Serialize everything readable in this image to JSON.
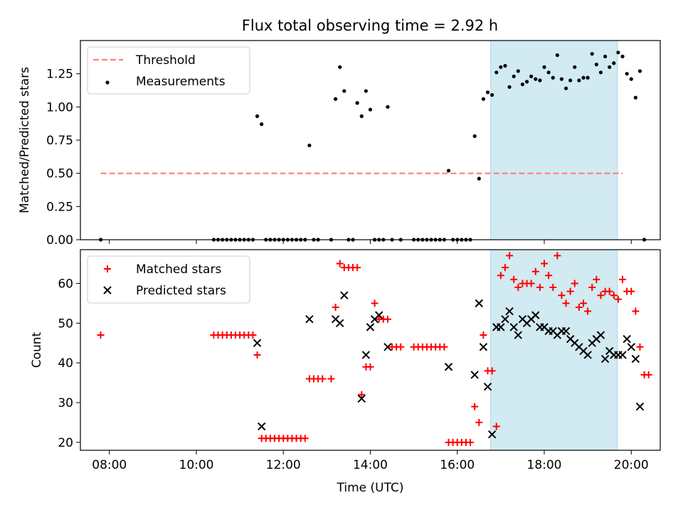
{
  "title": "Flux total observing time = 2.92 h",
  "chart_data": [
    {
      "type": "scatter",
      "ylabel": "Matched/Predicted stars",
      "xlabel": "",
      "xlim": [
        "07:20",
        "20:40"
      ],
      "ylim": [
        0,
        1.5
      ],
      "xticks": [
        "08:00",
        "10:00",
        "12:00",
        "14:00",
        "16:00",
        "18:00",
        "20:00"
      ],
      "yticks": [
        0.0,
        0.25,
        0.5,
        0.75,
        1.0,
        1.25
      ],
      "ytick_labels": [
        "0.00",
        "0.25",
        "0.50",
        "0.75",
        "1.00",
        "1.25"
      ],
      "grid": false,
      "legend_position": "upper-left",
      "shaded_interval": {
        "start": "16:46",
        "end": "19:41",
        "color": "#add8e6"
      },
      "threshold": {
        "name": "Threshold",
        "y": 0.5,
        "x_start": "07:48",
        "x_end": "19:48",
        "color": "#ff7f7f"
      },
      "series": [
        {
          "name": "Measurements",
          "color": "#000000",
          "marker": "dot",
          "points": [
            [
              "07:48",
              0
            ],
            [
              "10:24",
              0
            ],
            [
              "10:30",
              0
            ],
            [
              "10:36",
              0
            ],
            [
              "10:42",
              0
            ],
            [
              "10:48",
              0
            ],
            [
              "10:54",
              0
            ],
            [
              "11:00",
              0
            ],
            [
              "11:06",
              0
            ],
            [
              "11:12",
              0
            ],
            [
              "11:18",
              0
            ],
            [
              "11:24",
              0.93
            ],
            [
              "11:30",
              0.87
            ],
            [
              "11:36",
              0
            ],
            [
              "11:42",
              0
            ],
            [
              "11:48",
              0
            ],
            [
              "11:54",
              0
            ],
            [
              "12:00",
              0
            ],
            [
              "12:06",
              0
            ],
            [
              "12:12",
              0
            ],
            [
              "12:18",
              0
            ],
            [
              "12:24",
              0
            ],
            [
              "12:30",
              0
            ],
            [
              "12:36",
              0.71
            ],
            [
              "12:42",
              0
            ],
            [
              "12:48",
              0
            ],
            [
              "13:06",
              0
            ],
            [
              "13:12",
              1.06
            ],
            [
              "13:18",
              1.3
            ],
            [
              "13:24",
              1.12
            ],
            [
              "13:30",
              0
            ],
            [
              "13:36",
              0
            ],
            [
              "13:42",
              1.03
            ],
            [
              "13:48",
              0.93
            ],
            [
              "13:54",
              1.12
            ],
            [
              "14:00",
              0.98
            ],
            [
              "14:06",
              0
            ],
            [
              "14:12",
              0
            ],
            [
              "14:18",
              0
            ],
            [
              "14:24",
              1.0
            ],
            [
              "14:30",
              0
            ],
            [
              "14:42",
              0
            ],
            [
              "15:00",
              0
            ],
            [
              "15:06",
              0
            ],
            [
              "15:12",
              0
            ],
            [
              "15:18",
              0
            ],
            [
              "15:24",
              0
            ],
            [
              "15:30",
              0
            ],
            [
              "15:36",
              0
            ],
            [
              "15:42",
              0
            ],
            [
              "15:48",
              0.52
            ],
            [
              "15:54",
              0
            ],
            [
              "16:00",
              0
            ],
            [
              "16:06",
              0
            ],
            [
              "16:12",
              0
            ],
            [
              "16:18",
              0
            ],
            [
              "16:24",
              0.78
            ],
            [
              "16:30",
              0.46
            ],
            [
              "16:36",
              1.06
            ],
            [
              "16:42",
              1.11
            ],
            [
              "16:48",
              1.09
            ],
            [
              "16:54",
              1.26
            ],
            [
              "17:00",
              1.3
            ],
            [
              "17:06",
              1.31
            ],
            [
              "17:12",
              1.15
            ],
            [
              "17:18",
              1.23
            ],
            [
              "17:24",
              1.27
            ],
            [
              "17:30",
              1.17
            ],
            [
              "17:36",
              1.19
            ],
            [
              "17:42",
              1.23
            ],
            [
              "17:48",
              1.21
            ],
            [
              "17:54",
              1.2
            ],
            [
              "18:00",
              1.3
            ],
            [
              "18:06",
              1.26
            ],
            [
              "18:12",
              1.22
            ],
            [
              "18:18",
              1.39
            ],
            [
              "18:24",
              1.21
            ],
            [
              "18:30",
              1.14
            ],
            [
              "18:36",
              1.2
            ],
            [
              "18:42",
              1.3
            ],
            [
              "18:48",
              1.2
            ],
            [
              "18:54",
              1.22
            ],
            [
              "19:00",
              1.22
            ],
            [
              "19:06",
              1.4
            ],
            [
              "19:12",
              1.32
            ],
            [
              "19:18",
              1.26
            ],
            [
              "19:24",
              1.38
            ],
            [
              "19:30",
              1.3
            ],
            [
              "19:36",
              1.33
            ],
            [
              "19:42",
              1.41
            ],
            [
              "19:48",
              1.38
            ],
            [
              "19:54",
              1.25
            ],
            [
              "20:00",
              1.21
            ],
            [
              "20:06",
              1.07
            ],
            [
              "20:12",
              1.27
            ],
            [
              "20:18",
              0
            ]
          ]
        }
      ]
    },
    {
      "type": "scatter",
      "ylabel": "Count",
      "xlabel": "Time (UTC)",
      "xlim": [
        "07:20",
        "20:40"
      ],
      "ylim": [
        18,
        68.5
      ],
      "xticks": [
        "08:00",
        "10:00",
        "12:00",
        "14:00",
        "16:00",
        "18:00",
        "20:00"
      ],
      "yticks": [
        20,
        30,
        40,
        50,
        60
      ],
      "ytick_labels": [
        "20",
        "30",
        "40",
        "50",
        "60"
      ],
      "grid": false,
      "legend_position": "upper-left",
      "shaded_interval": {
        "start": "16:46",
        "end": "19:41",
        "color": "#add8e6"
      },
      "series": [
        {
          "name": "Matched stars",
          "color": "#ff0000",
          "marker": "plus",
          "points": [
            [
              "07:48",
              47
            ],
            [
              "10:24",
              47
            ],
            [
              "10:30",
              47
            ],
            [
              "10:36",
              47
            ],
            [
              "10:42",
              47
            ],
            [
              "10:48",
              47
            ],
            [
              "10:54",
              47
            ],
            [
              "11:00",
              47
            ],
            [
              "11:06",
              47
            ],
            [
              "11:12",
              47
            ],
            [
              "11:18",
              47
            ],
            [
              "11:24",
              42
            ],
            [
              "11:30",
              21
            ],
            [
              "11:36",
              21
            ],
            [
              "11:42",
              21
            ],
            [
              "11:48",
              21
            ],
            [
              "11:54",
              21
            ],
            [
              "12:00",
              21
            ],
            [
              "12:06",
              21
            ],
            [
              "12:12",
              21
            ],
            [
              "12:18",
              21
            ],
            [
              "12:24",
              21
            ],
            [
              "12:30",
              21
            ],
            [
              "12:36",
              36
            ],
            [
              "12:42",
              36
            ],
            [
              "12:48",
              36
            ],
            [
              "12:54",
              36
            ],
            [
              "13:06",
              36
            ],
            [
              "13:12",
              54
            ],
            [
              "13:18",
              65
            ],
            [
              "13:24",
              64
            ],
            [
              "13:30",
              64
            ],
            [
              "13:36",
              64
            ],
            [
              "13:42",
              64
            ],
            [
              "13:48",
              32
            ],
            [
              "13:54",
              39
            ],
            [
              "14:00",
              39
            ],
            [
              "14:06",
              55
            ],
            [
              "14:12",
              51
            ],
            [
              "14:18",
              51
            ],
            [
              "14:24",
              51
            ],
            [
              "14:30",
              44
            ],
            [
              "14:36",
              44
            ],
            [
              "14:42",
              44
            ],
            [
              "15:00",
              44
            ],
            [
              "15:06",
              44
            ],
            [
              "15:12",
              44
            ],
            [
              "15:18",
              44
            ],
            [
              "15:24",
              44
            ],
            [
              "15:30",
              44
            ],
            [
              "15:36",
              44
            ],
            [
              "15:42",
              44
            ],
            [
              "15:48",
              20
            ],
            [
              "15:54",
              20
            ],
            [
              "16:00",
              20
            ],
            [
              "16:06",
              20
            ],
            [
              "16:12",
              20
            ],
            [
              "16:18",
              20
            ],
            [
              "16:24",
              29
            ],
            [
              "16:30",
              25
            ],
            [
              "16:36",
              47
            ],
            [
              "16:42",
              38
            ],
            [
              "16:48",
              38
            ],
            [
              "16:54",
              24
            ],
            [
              "17:00",
              62
            ],
            [
              "17:06",
              64
            ],
            [
              "17:12",
              67
            ],
            [
              "17:18",
              61
            ],
            [
              "17:24",
              59
            ],
            [
              "17:30",
              60
            ],
            [
              "17:36",
              60
            ],
            [
              "17:42",
              60
            ],
            [
              "17:48",
              63
            ],
            [
              "17:54",
              59
            ],
            [
              "18:00",
              65
            ],
            [
              "18:06",
              62
            ],
            [
              "18:12",
              59
            ],
            [
              "18:18",
              67
            ],
            [
              "18:24",
              57
            ],
            [
              "18:30",
              55
            ],
            [
              "18:36",
              58
            ],
            [
              "18:42",
              60
            ],
            [
              "18:48",
              54
            ],
            [
              "18:54",
              55
            ],
            [
              "19:00",
              53
            ],
            [
              "19:06",
              59
            ],
            [
              "19:12",
              61
            ],
            [
              "19:18",
              57
            ],
            [
              "19:24",
              58
            ],
            [
              "19:30",
              58
            ],
            [
              "19:36",
              57
            ],
            [
              "19:42",
              56
            ],
            [
              "19:48",
              61
            ],
            [
              "19:54",
              58
            ],
            [
              "20:00",
              58
            ],
            [
              "20:06",
              53
            ],
            [
              "20:12",
              44
            ],
            [
              "20:18",
              37
            ],
            [
              "20:24",
              37
            ]
          ]
        },
        {
          "name": "Predicted stars",
          "color": "#000000",
          "marker": "x",
          "points": [
            [
              "11:24",
              45
            ],
            [
              "11:30",
              24
            ],
            [
              "12:36",
              51
            ],
            [
              "13:12",
              51
            ],
            [
              "13:18",
              50
            ],
            [
              "13:24",
              57
            ],
            [
              "13:48",
              31
            ],
            [
              "13:54",
              42
            ],
            [
              "14:00",
              49
            ],
            [
              "14:06",
              51
            ],
            [
              "14:12",
              52
            ],
            [
              "14:24",
              44
            ],
            [
              "15:48",
              39
            ],
            [
              "16:24",
              37
            ],
            [
              "16:30",
              55
            ],
            [
              "16:36",
              44
            ],
            [
              "16:42",
              34
            ],
            [
              "16:48",
              22
            ],
            [
              "16:54",
              49
            ],
            [
              "17:00",
              49
            ],
            [
              "17:06",
              51
            ],
            [
              "17:12",
              53
            ],
            [
              "17:18",
              49
            ],
            [
              "17:24",
              47
            ],
            [
              "17:30",
              51
            ],
            [
              "17:36",
              50
            ],
            [
              "17:42",
              51
            ],
            [
              "17:48",
              52
            ],
            [
              "17:54",
              49
            ],
            [
              "18:00",
              49
            ],
            [
              "18:06",
              48
            ],
            [
              "18:12",
              48
            ],
            [
              "18:18",
              47
            ],
            [
              "18:24",
              48
            ],
            [
              "18:30",
              48
            ],
            [
              "18:36",
              46
            ],
            [
              "18:42",
              45
            ],
            [
              "18:48",
              44
            ],
            [
              "18:54",
              43
            ],
            [
              "19:00",
              42
            ],
            [
              "19:06",
              45
            ],
            [
              "19:12",
              46
            ],
            [
              "19:18",
              47
            ],
            [
              "19:24",
              41
            ],
            [
              "19:30",
              43
            ],
            [
              "19:36",
              42
            ],
            [
              "19:42",
              42
            ],
            [
              "19:48",
              42
            ],
            [
              "19:54",
              46
            ],
            [
              "20:00",
              44
            ],
            [
              "20:06",
              41
            ],
            [
              "20:12",
              29
            ]
          ]
        }
      ]
    }
  ]
}
